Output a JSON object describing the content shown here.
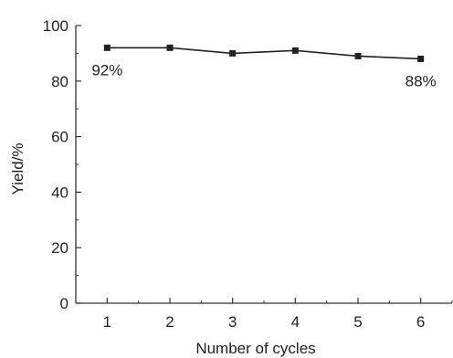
{
  "chart_data": {
    "type": "line",
    "x": [
      1,
      2,
      3,
      4,
      5,
      6
    ],
    "series": [
      {
        "values": [
          92,
          92,
          90,
          91,
          89,
          88
        ]
      }
    ],
    "xlabel": "Number of cycles",
    "ylabel": "Yield/%",
    "xticks": [
      1,
      2,
      3,
      4,
      5,
      6
    ],
    "yticks": [
      0,
      20,
      40,
      60,
      80,
      100
    ],
    "xlim": [
      0.5,
      6.5
    ],
    "ylim": [
      0,
      100
    ],
    "annotations": [
      {
        "text": "92%",
        "x": 1,
        "y": 92
      },
      {
        "text": "88%",
        "x": 6,
        "y": 88
      }
    ],
    "grid": false,
    "marker": "square",
    "colors": {
      "line": "#222222",
      "axis": "#333333",
      "text": "#222222"
    }
  }
}
